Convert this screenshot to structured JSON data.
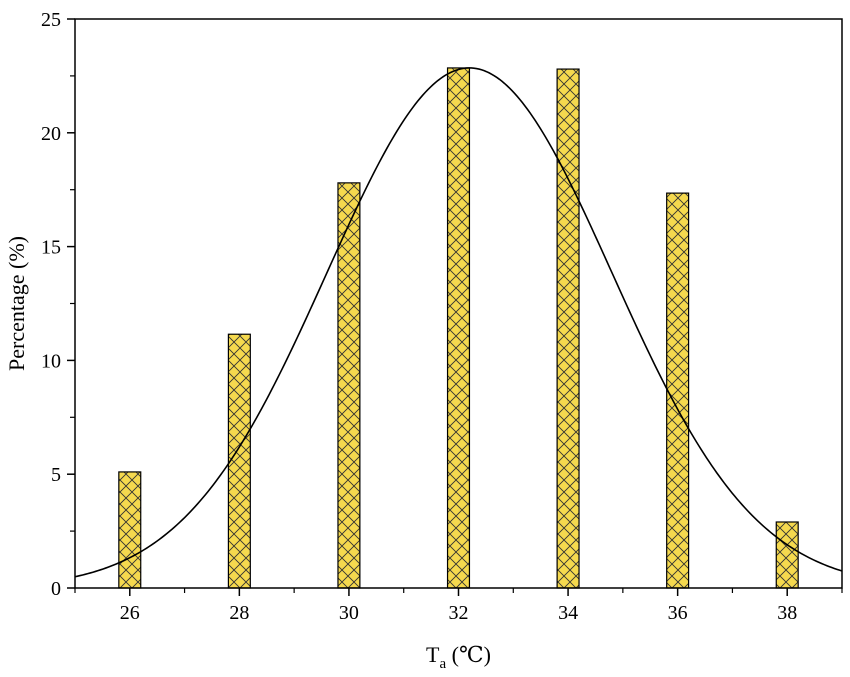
{
  "chart_data": {
    "type": "bar",
    "title": "",
    "xlabel": "T",
    "xlabel_subscript": "a",
    "xlabel_unit": " (℃)",
    "ylabel": "Percentage (%)",
    "xlim": [
      25,
      39
    ],
    "ylim": [
      0,
      25
    ],
    "x_ticks": [
      26,
      28,
      30,
      32,
      34,
      36,
      38
    ],
    "y_ticks": [
      0,
      5,
      10,
      15,
      20,
      25
    ],
    "x_minor_ticks": [
      25,
      27,
      29,
      31,
      33,
      35,
      37,
      39
    ],
    "y_minor_ticks": [
      2.5,
      7.5,
      12.5,
      17.5,
      22.5
    ],
    "bar_width": 0.4,
    "x": [
      26,
      28,
      30,
      32,
      34,
      36,
      38
    ],
    "values": [
      5.1,
      11.15,
      17.8,
      22.85,
      22.8,
      17.35,
      2.9
    ],
    "bar_color": "#F5D94E",
    "bar_edge_color": "#000000",
    "hatch": "crosshatch",
    "fit_curve": {
      "type": "gaussian",
      "amplitude": 22.85,
      "mean": 32.2,
      "sigma": 2.6,
      "color": "#000000"
    },
    "grid": false,
    "legend": "none"
  }
}
